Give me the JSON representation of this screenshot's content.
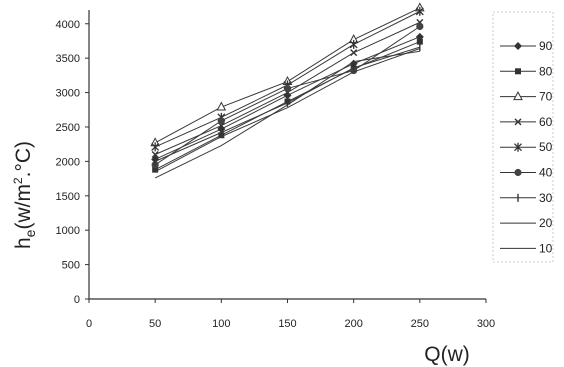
{
  "chart_data": {
    "type": "line",
    "title": "",
    "xlabel": "Q(w)",
    "ylabel_main": "h",
    "ylabel_sub": "e",
    "ylabel_unit_open": "(w/m",
    "ylabel_unit_exp": "2",
    "ylabel_unit_close": ".°C)",
    "xlim": [
      0,
      300
    ],
    "ylim": [
      0,
      4200
    ],
    "xticks": [
      "0",
      "50",
      "100",
      "150",
      "200",
      "250",
      "300"
    ],
    "yticks": [
      "0",
      "500",
      "1000",
      "1500",
      "2000",
      "2500",
      "3000",
      "3500",
      "4000"
    ],
    "grid": false,
    "legend_position": "right",
    "x": [
      50,
      100,
      150,
      200,
      250
    ],
    "series": [
      {
        "name": "90",
        "marker": "diamond",
        "values": [
          2030,
          2470,
          2960,
          3420,
          3810
        ]
      },
      {
        "name": "80",
        "marker": "square",
        "values": [
          1880,
          2380,
          2870,
          3350,
          3740
        ]
      },
      {
        "name": "70",
        "marker": "triangle",
        "values": [
          2270,
          2790,
          3160,
          3770,
          4230
        ]
      },
      {
        "name": "60",
        "marker": "x",
        "values": [
          2100,
          2520,
          3000,
          3580,
          4020
        ]
      },
      {
        "name": "50",
        "marker": "star",
        "values": [
          2210,
          2640,
          3110,
          3700,
          4180
        ]
      },
      {
        "name": "40",
        "marker": "circle",
        "values": [
          1950,
          2590,
          3060,
          3320,
          3960
        ]
      },
      {
        "name": "30",
        "marker": "bar",
        "values": [
          2000,
          2420,
          2850,
          3360,
          3660
        ]
      },
      {
        "name": "20",
        "marker": "none",
        "values": [
          1850,
          2360,
          2780,
          3300,
          3640
        ]
      },
      {
        "name": "10",
        "marker": "none",
        "values": [
          1760,
          2230,
          2820,
          3450,
          3600
        ]
      }
    ]
  }
}
